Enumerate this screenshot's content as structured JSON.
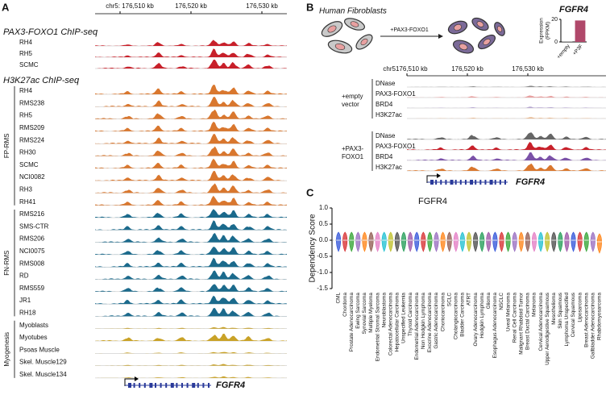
{
  "panel_a": {
    "letter": "A",
    "coords": [
      "chr5: 176,510 kb",
      "176,520 kb",
      "176,530 kb"
    ],
    "chip_title": "PAX3-FOXO1 ChIP-seq",
    "chip_color": "#c8202a",
    "chip_tracks": [
      "RH4",
      "RH5",
      "SCMC"
    ],
    "k27_title": "H3K27ac ChIP-seq",
    "groups": [
      {
        "name": "FP-RMS",
        "color": "#d9772e",
        "tracks": [
          "RH4",
          "RMS238",
          "RH5",
          "RMS209",
          "RMS224",
          "RH30",
          "SCMC",
          "NCI0082",
          "RH3",
          "RH41"
        ]
      },
      {
        "name": "FN-RMS",
        "color": "#1b6a8c",
        "tracks": [
          "RMS216",
          "SMS-CTR",
          "RMS206",
          "NCI0075",
          "RMS008",
          "RD",
          "RMS559",
          "JR1",
          "RH18"
        ]
      },
      {
        "name": "Myogenesis",
        "color": "#c9a227",
        "tracks": [
          "Myoblasts",
          "Myotubes",
          "Psoas Muscle",
          "Skel. Muscle129",
          "Skel. Muscle134"
        ]
      }
    ],
    "gene": "FGFR4"
  },
  "panel_b": {
    "letter": "B",
    "cell_label": "Human Fibroblasts",
    "treatment": "+PAX3-FOXO1",
    "coords": [
      "chr5176,510 kb",
      "176,520 kb",
      "176,530 kb"
    ],
    "conditions": [
      {
        "name_lines": [
          "+empty",
          "vector"
        ],
        "tracks": [
          {
            "name": "DNase",
            "color": "#888888"
          },
          {
            "name": "PAX3-FOXO1",
            "color": "#e8a0a0"
          },
          {
            "name": "BRD4",
            "color": "#b7a8d0"
          },
          {
            "name": "H3K27ac",
            "color": "#e8b890"
          }
        ]
      },
      {
        "name_lines": [
          "+PAX3-",
          "FOXO1"
        ],
        "tracks": [
          {
            "name": "DNase",
            "color": "#666666"
          },
          {
            "name": "PAX3-FOXO1",
            "color": "#c8202a"
          },
          {
            "name": "BRD4",
            "color": "#7b52a8"
          },
          {
            "name": "H3K27ac",
            "color": "#d9772e"
          }
        ]
      }
    ],
    "gene": "FGFR4"
  },
  "panel_c_letter": "C",
  "chart_data": [
    {
      "type": "bar",
      "title": "FGFR4",
      "ylabel": [
        "Expression",
        "(FPKM)"
      ],
      "categories": [
        "+empty",
        "+P3F"
      ],
      "values": [
        0.5,
        19
      ],
      "colors": [
        "#999999",
        "#b0486a"
      ],
      "ylim": [
        0,
        20
      ],
      "yticks": [
        0,
        20
      ]
    },
    {
      "type": "violin",
      "title": "FGFR4",
      "ylabel": "Dependency Score",
      "categories": [
        "CML",
        "Chordoma",
        "Prostate Adenocarcinoma",
        "Ewing Sarcoma",
        "Synovial Sarcoma",
        "Multiple Myeloma",
        "Endometrial Stromal Sarcoma",
        "Neuroblastoma",
        "Colorectal Adenocarcinoma",
        "Hepatocellular Carcinoma",
        "Unspecified Leukemia",
        "Thyroid Carcinoma",
        "Endometrial Adenocarcinoma",
        "Non Hodgkin Lymphoma",
        "Exocrine Adenocarcinoma",
        "Gastric Adenocarcinoma",
        "Choriocarcinoma",
        "SCLC",
        "Cholangiocarcinoma",
        "Bladder Carcinoma",
        "ATRT",
        "Ovary Adenocarcinoma",
        "Hodgkin Lymphoma",
        "Glioma",
        "Esophagus Adenocarcinoma",
        "NSCLC",
        "Uveal Melanoma",
        "Renal Cell Carcinoma",
        "Malignant Rhabdoid Tumor",
        "Breast Ductal Carcinoma",
        "Melanoma",
        "Cervical Adenocarcinoma",
        "Upper Aerodigestive Squamous",
        "Mesothelioma",
        "Skin Squamous",
        "Lymphoma Unspecified",
        "Cervical Squamous",
        "Liposarcoma",
        "Breast Adenocarcinoma",
        "Gallbladder Adenocarcinoma",
        "Rhabdomyosarcoma"
      ],
      "values": [
        0,
        0,
        0,
        0,
        0,
        0,
        0,
        0,
        0,
        0,
        0,
        0,
        0,
        0,
        0,
        0,
        0,
        0,
        0,
        0,
        0,
        0,
        0,
        0,
        0,
        0,
        0,
        0,
        0,
        0,
        0,
        0,
        0,
        0,
        0,
        0,
        0,
        0,
        0,
        0,
        -0.05
      ],
      "colors": [
        "#2b4fd8",
        "#d62728",
        "#2ca02c",
        "#9467bd",
        "#ff7f0e",
        "#8c564b",
        "#e377c2",
        "#17becf",
        "#bcbd22",
        "#444444",
        "#1a9850",
        "#984ea3"
      ],
      "ylim": [
        -1.5,
        1.0
      ],
      "yticks": [
        {
          "value": 1.0,
          "label": "1.0"
        },
        {
          "value": 0.5,
          "label": "0.5"
        },
        {
          "value": 0,
          "label": "0.0"
        },
        {
          "value": -0.5,
          "label": "-0.5"
        },
        {
          "value": -1.0,
          "label": "-1.0"
        },
        {
          "value": -1.5,
          "label": "-1.5"
        }
      ]
    }
  ]
}
